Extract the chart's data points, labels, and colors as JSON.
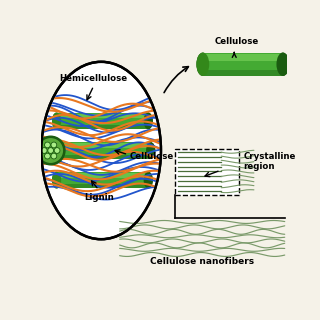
{
  "bg_color": "#f5f2e8",
  "blue_color": "#2255cc",
  "orange_color": "#e87820",
  "rod_green_main": "#44aa33",
  "rod_green_dark": "#1a5c10",
  "rod_green_light": "#88dd66",
  "rod_green_mid": "#33881a",
  "crystalline_green": "#4a6e3a",
  "nanofib_green": "#7a9a6a",
  "cross_section_green": "#3a6a2a",
  "labels": {
    "hemicellulose": "Hemicellulose",
    "cellulose_inner": "Cellulose",
    "lignin": "Lignin",
    "cellulose_top": "Cellulose",
    "crystalline": "Crystalline\nregion",
    "nanofiber": "Cellulose nanofibers"
  }
}
